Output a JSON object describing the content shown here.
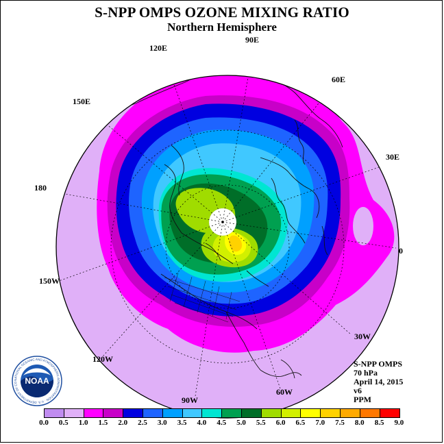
{
  "header": {
    "title": "S-NPP OMPS OZONE MIXING RATIO",
    "subtitle": "Northern Hemisphere"
  },
  "map": {
    "projection": "north polar stereographic",
    "meridian_labels": [
      "120E",
      "90E",
      "60E",
      "150E",
      "30E",
      "180",
      "0",
      "150W",
      "30W",
      "120W",
      "60W",
      "90W"
    ]
  },
  "info": {
    "instrument": "S-NPP OMPS",
    "pressure": "70 hPa",
    "date": "April 14, 2015",
    "version": "v6",
    "units": "PPM"
  },
  "colorbar": {
    "ticks": [
      "0.0",
      "0.5",
      "1.0",
      "1.5",
      "2.0",
      "2.5",
      "3.0",
      "3.5",
      "4.0",
      "4.5",
      "5.0",
      "5.5",
      "6.0",
      "6.5",
      "7.0",
      "7.5",
      "8.0",
      "8.5",
      "9.0"
    ],
    "colors": [
      "#c08cf0",
      "#e0b0f8",
      "#ff00ff",
      "#c800c8",
      "#0000e0",
      "#1e64ff",
      "#00a0ff",
      "#40c8ff",
      "#00e6d2",
      "#00a050",
      "#006e28",
      "#a0dc00",
      "#d2f000",
      "#ffff00",
      "#ffd200",
      "#ffaa00",
      "#ff7800",
      "#ff0000",
      "#a06432"
    ]
  },
  "logo": {
    "text": "NOAA",
    "ring_text": "NATIONAL OCEANIC AND ATMOSPHERIC ADMINISTRATION · U.S. DEPARTMENT OF COMMERCE"
  }
}
